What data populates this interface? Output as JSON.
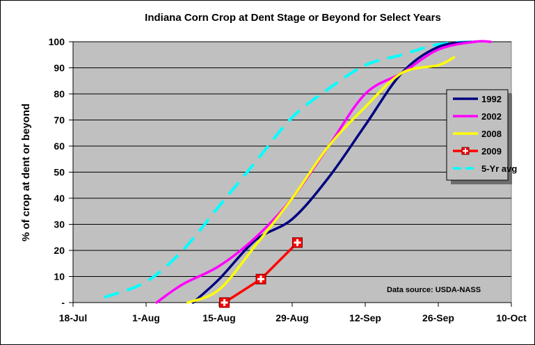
{
  "chart_data": {
    "type": "line",
    "title": "Indiana Corn Crop at Dent Stage or Beyond for Select Years",
    "ylabel": "% of crop at dent or beyond",
    "xlabel": "",
    "x_ticks": [
      "18-Jul",
      "1-Aug",
      "15-Aug",
      "29-Aug",
      "12-Sep",
      "26-Sep",
      "10-Oct"
    ],
    "y_ticks": [
      "-",
      "10",
      "20",
      "30",
      "40",
      "50",
      "60",
      "70",
      "80",
      "90",
      "100"
    ],
    "xlim": [
      "2009-07-18",
      "2009-10-10"
    ],
    "ylim": [
      0,
      100
    ],
    "grid": "horizontal",
    "legend_position": "right",
    "source_note": "Data source: USDA-NASS",
    "series": [
      {
        "name": "1992",
        "color": "#000080",
        "style": "solid",
        "marker": "none",
        "points": [
          [
            "2009-08-10",
            0
          ],
          [
            "2009-08-15",
            9
          ],
          [
            "2009-08-22",
            24
          ],
          [
            "2009-08-29",
            32
          ],
          [
            "2009-09-05",
            48
          ],
          [
            "2009-09-12",
            68
          ],
          [
            "2009-09-19",
            88
          ],
          [
            "2009-09-26",
            98
          ],
          [
            "2009-10-03",
            100
          ]
        ]
      },
      {
        "name": "2002",
        "color": "#ff00ff",
        "style": "solid",
        "marker": "none",
        "points": [
          [
            "2009-08-03",
            0
          ],
          [
            "2009-08-08",
            7
          ],
          [
            "2009-08-15",
            14
          ],
          [
            "2009-08-22",
            25
          ],
          [
            "2009-08-29",
            40
          ],
          [
            "2009-09-05",
            60
          ],
          [
            "2009-09-12",
            80
          ],
          [
            "2009-09-19",
            88
          ],
          [
            "2009-09-26",
            97
          ],
          [
            "2009-10-03",
            100
          ],
          [
            "2009-10-06",
            100
          ]
        ]
      },
      {
        "name": "2008",
        "color": "#ffff00",
        "style": "solid",
        "marker": "none",
        "points": [
          [
            "2009-08-09",
            0
          ],
          [
            "2009-08-15",
            5
          ],
          [
            "2009-08-22",
            22
          ],
          [
            "2009-08-29",
            40
          ],
          [
            "2009-09-05",
            60
          ],
          [
            "2009-09-12",
            75
          ],
          [
            "2009-09-19",
            88
          ],
          [
            "2009-09-26",
            91
          ],
          [
            "2009-09-29",
            94
          ]
        ]
      },
      {
        "name": "2009",
        "color": "#ff0000",
        "style": "solid",
        "marker": "square-plus",
        "points": [
          [
            "2009-08-16",
            0
          ],
          [
            "2009-08-23",
            9
          ],
          [
            "2009-08-30",
            23
          ]
        ]
      },
      {
        "name": "5-Yr avg",
        "color": "#00ffff",
        "style": "dashed",
        "marker": "none",
        "points": [
          [
            "2009-07-24",
            2
          ],
          [
            "2009-08-01",
            8
          ],
          [
            "2009-08-08",
            20
          ],
          [
            "2009-08-15",
            37
          ],
          [
            "2009-08-22",
            54
          ],
          [
            "2009-08-29",
            71
          ],
          [
            "2009-09-05",
            82
          ],
          [
            "2009-09-12",
            91
          ],
          [
            "2009-09-19",
            95
          ],
          [
            "2009-09-26",
            99
          ],
          [
            "2009-10-03",
            100
          ]
        ]
      }
    ]
  }
}
